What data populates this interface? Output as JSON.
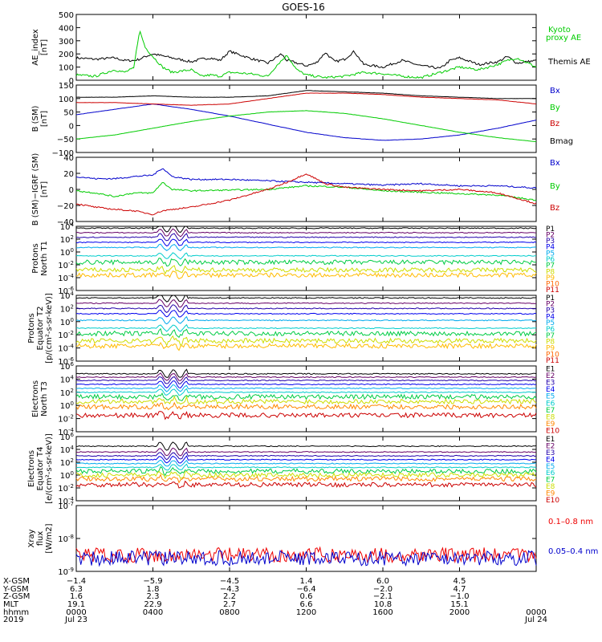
{
  "title": "GOES-16",
  "chart_data": [
    {
      "type": "line",
      "ylabel": "AE_index [nT]",
      "ylim": [
        0,
        500
      ],
      "yticks": [
        "500",
        "400",
        "300",
        "200",
        "100",
        "0"
      ],
      "log": false,
      "legend": [
        {
          "label": "Kyoto",
          "color": "#00cc00"
        },
        {
          "label": "proxy AE",
          "color": "#00cc00"
        },
        {
          "label": "Themis AE",
          "color": "#000000"
        }
      ],
      "series": [
        {
          "name": "Themis AE",
          "color": "#000000",
          "x": [
            0,
            1,
            2,
            2.5,
            3,
            3.3,
            3.6,
            4,
            5,
            6,
            6.5,
            7,
            7.5,
            8,
            9,
            10,
            10.7,
            11,
            11.3,
            12,
            12.5,
            13,
            13.5,
            14,
            14.5,
            15,
            16,
            17,
            18,
            19,
            19.5,
            20,
            21,
            22,
            22.5,
            23,
            24
          ],
          "values": [
            170,
            160,
            170,
            150,
            150,
            160,
            180,
            200,
            170,
            140,
            160,
            170,
            150,
            220,
            170,
            130,
            200,
            150,
            140,
            110,
            130,
            210,
            140,
            160,
            220,
            120,
            100,
            150,
            110,
            90,
            150,
            170,
            120,
            140,
            180,
            130,
            150
          ]
        },
        {
          "name": "Kyoto proxy AE",
          "color": "#00cc00",
          "x": [
            0,
            1,
            2,
            2.5,
            3,
            3.3,
            3.6,
            4,
            4.5,
            5,
            6,
            6.5,
            7,
            7.5,
            8,
            9,
            10,
            10.5,
            11,
            11.5,
            12,
            13,
            14,
            15,
            16,
            17,
            18,
            19,
            20,
            21,
            22,
            22.5,
            23,
            24
          ],
          "values": [
            40,
            30,
            80,
            60,
            90,
            380,
            250,
            180,
            100,
            60,
            80,
            30,
            40,
            30,
            60,
            50,
            30,
            120,
            190,
            80,
            40,
            20,
            30,
            60,
            50,
            30,
            20,
            60,
            100,
            80,
            120,
            150,
            170,
            100
          ]
        }
      ]
    },
    {
      "type": "line",
      "ylabel": "B (SM) [nT]",
      "ylim": [
        -100,
        150
      ],
      "yticks": [
        "150",
        "100",
        "50",
        "0",
        "−50",
        "−100"
      ],
      "log": false,
      "legend": [
        {
          "label": "Bx",
          "color": "#0000cc"
        },
        {
          "label": "By",
          "color": "#00cc00"
        },
        {
          "label": "Bz",
          "color": "#cc0000"
        },
        {
          "label": "Bmag",
          "color": "#000000"
        }
      ],
      "series": [
        {
          "name": "Bx",
          "color": "#0000cc",
          "x": [
            0,
            2,
            4,
            6,
            8,
            10,
            12,
            14,
            16,
            18,
            20,
            22,
            24
          ],
          "values": [
            40,
            60,
            80,
            60,
            35,
            5,
            -25,
            -45,
            -55,
            -50,
            -35,
            -10,
            20
          ]
        },
        {
          "name": "By",
          "color": "#00cc00",
          "x": [
            0,
            2,
            4,
            6,
            8,
            10,
            12,
            14,
            16,
            18,
            20,
            22,
            24
          ],
          "values": [
            -50,
            -35,
            -10,
            15,
            35,
            50,
            55,
            45,
            25,
            0,
            -25,
            -45,
            -60
          ]
        },
        {
          "name": "Bz",
          "color": "#cc0000",
          "x": [
            0,
            2,
            4,
            6,
            8,
            10,
            12,
            14,
            16,
            18,
            20,
            22,
            24
          ],
          "values": [
            85,
            85,
            80,
            75,
            80,
            100,
            120,
            120,
            115,
            105,
            100,
            95,
            80
          ]
        },
        {
          "name": "Bmag",
          "color": "#000000",
          "x": [
            0,
            2,
            4,
            6,
            8,
            10,
            12,
            14,
            16,
            18,
            20,
            22,
            24
          ],
          "values": [
            105,
            105,
            110,
            105,
            105,
            110,
            130,
            125,
            120,
            110,
            105,
            100,
            100
          ]
        }
      ]
    },
    {
      "type": "line",
      "ylabel": "B (SM)−IGRF (SM) [nT]",
      "ylim": [
        -45,
        45
      ],
      "yticks": [
        "40",
        "20",
        "0",
        "−20",
        "−40"
      ],
      "log": false,
      "legend": [
        {
          "label": "Bx",
          "color": "#0000cc"
        },
        {
          "label": "By",
          "color": "#00cc00"
        },
        {
          "label": "Bz",
          "color": "#cc0000"
        }
      ],
      "series": [
        {
          "name": "Bx",
          "color": "#0000cc",
          "x": [
            0,
            1,
            2,
            3,
            4,
            4.5,
            5,
            6,
            8,
            10,
            12,
            14,
            16,
            18,
            20,
            22,
            24
          ],
          "values": [
            18,
            15,
            15,
            18,
            20,
            30,
            18,
            14,
            14,
            12,
            10,
            8,
            6,
            8,
            5,
            5,
            2
          ]
        },
        {
          "name": "By",
          "color": "#00cc00",
          "x": [
            0,
            1,
            2,
            3,
            4,
            4.5,
            5,
            6,
            8,
            10,
            12,
            14,
            16,
            18,
            20,
            22,
            24
          ],
          "values": [
            -2,
            -5,
            -10,
            -5,
            -5,
            10,
            0,
            -2,
            -1,
            0,
            5,
            3,
            -2,
            -4,
            -6,
            -8,
            -15
          ]
        },
        {
          "name": "Bz",
          "color": "#cc0000",
          "x": [
            0,
            1,
            2,
            3,
            4,
            4.5,
            5,
            6,
            8,
            10,
            11,
            12,
            13,
            14,
            16,
            18,
            20,
            22,
            24
          ],
          "values": [
            -20,
            -25,
            -28,
            -30,
            -35,
            -30,
            -28,
            -25,
            -15,
            0,
            10,
            22,
            8,
            3,
            0,
            -2,
            0,
            -5,
            -20
          ]
        }
      ]
    },
    {
      "type": "line",
      "ylabel": "Protons North T1",
      "ylim": [
        -6,
        4
      ],
      "yticks": [
        "10^4",
        "10^2",
        "10^0",
        "10^-2",
        "10^-4",
        "10^-6"
      ],
      "log": true,
      "legend": [
        "P1",
        "P2",
        "P3",
        "P4",
        "P5",
        "P6",
        "P7",
        "P8",
        "P9",
        "P10",
        "P11"
      ],
      "series": [
        {
          "name": "P1",
          "color": "#000000",
          "values": [
            3.7
          ]
        },
        {
          "name": "P2",
          "color": "#660066",
          "values": [
            3.0
          ]
        },
        {
          "name": "P3",
          "color": "#2200aa",
          "values": [
            2.3
          ]
        },
        {
          "name": "P4",
          "color": "#0000ee",
          "values": [
            1.5
          ]
        },
        {
          "name": "P5",
          "color": "#00aaee",
          "values": [
            0.7
          ]
        },
        {
          "name": "P6",
          "color": "#00cccc",
          "values": [
            -0.6
          ]
        },
        {
          "name": "P7",
          "color": "#00cc44",
          "values": [
            -1.6
          ]
        },
        {
          "name": "P8",
          "color": "#ccdd00",
          "values": [
            -2.8
          ]
        },
        {
          "name": "P9",
          "color": "#ffbb00",
          "values": [
            -3.6
          ]
        }
      ]
    },
    {
      "type": "line",
      "ylabel": "Protons Equator T2 [p/(cm²-s-sr-keV)]",
      "ylim": [
        -6,
        4
      ],
      "yticks": [
        "10^4",
        "10^2",
        "10^0",
        "10^-2",
        "10^-4",
        "10^-6"
      ],
      "log": true,
      "legend": [
        "P1",
        "P2",
        "P3",
        "P4",
        "P5",
        "P6",
        "P7",
        "P8",
        "P9",
        "P10",
        "P11"
      ],
      "series": [
        {
          "name": "P1",
          "color": "#000000",
          "values": [
            3.6
          ]
        },
        {
          "name": "P2",
          "color": "#660066",
          "values": [
            2.8
          ]
        },
        {
          "name": "P3",
          "color": "#2200aa",
          "values": [
            2.0
          ]
        },
        {
          "name": "P4",
          "color": "#0000ee",
          "values": [
            1.2
          ]
        },
        {
          "name": "P5",
          "color": "#00aaee",
          "values": [
            0.2
          ]
        },
        {
          "name": "P6",
          "color": "#00cccc",
          "values": [
            -1.0
          ]
        },
        {
          "name": "P7",
          "color": "#00cc44",
          "values": [
            -1.8
          ]
        },
        {
          "name": "P8",
          "color": "#ccdd00",
          "values": [
            -2.9
          ]
        },
        {
          "name": "P9",
          "color": "#ffbb00",
          "values": [
            -3.7
          ]
        }
      ]
    },
    {
      "type": "line",
      "ylabel": "Electrons North T3",
      "ylim": [
        -4,
        6
      ],
      "yticks": [
        "10^6",
        "10^4",
        "10^2",
        "10^0",
        "10^-2",
        "10^-4"
      ],
      "log": true,
      "legend": [
        "E1",
        "E2",
        "E3",
        "E4",
        "E5",
        "E6",
        "E7",
        "E8",
        "E9",
        "E10"
      ],
      "series": [
        {
          "name": "E1",
          "color": "#000000",
          "values": [
            4.8
          ]
        },
        {
          "name": "E2",
          "color": "#660066",
          "values": [
            4.3
          ]
        },
        {
          "name": "E3",
          "color": "#2200aa",
          "values": [
            3.8
          ]
        },
        {
          "name": "E4",
          "color": "#0000ee",
          "values": [
            3.2
          ]
        },
        {
          "name": "E5",
          "color": "#00aaee",
          "values": [
            2.6
          ]
        },
        {
          "name": "E6",
          "color": "#00cccc",
          "values": [
            2.0
          ]
        },
        {
          "name": "E7",
          "color": "#00cc44",
          "values": [
            1.3
          ]
        },
        {
          "name": "E8",
          "color": "#ccdd00",
          "values": [
            0.6
          ]
        },
        {
          "name": "E9",
          "color": "#ff8800",
          "values": [
            -0.2
          ]
        },
        {
          "name": "E10",
          "color": "#cc0000",
          "values": [
            -1.5
          ]
        }
      ]
    },
    {
      "type": "line",
      "ylabel": "Electrons Equator T4 [e/(cm²-s-sr-keV)]",
      "ylim": [
        -4,
        6
      ],
      "yticks": [
        "10^6",
        "10^4",
        "10^2",
        "10^0",
        "10^-2",
        "10^-4"
      ],
      "log": true,
      "legend": [
        "E1",
        "E2",
        "E3",
        "E4",
        "E5",
        "E6",
        "E7",
        "E8",
        "E9",
        "E10"
      ],
      "series": [
        {
          "name": "E1",
          "color": "#000000",
          "values": [
            4.5
          ]
        },
        {
          "name": "E2",
          "color": "#660066",
          "values": [
            3.6
          ]
        },
        {
          "name": "E3",
          "color": "#2200aa",
          "values": [
            3.0
          ]
        },
        {
          "name": "E4",
          "color": "#0000ee",
          "values": [
            2.4
          ]
        },
        {
          "name": "E5",
          "color": "#00aaee",
          "values": [
            1.8
          ]
        },
        {
          "name": "E6",
          "color": "#00cccc",
          "values": [
            1.2
          ]
        },
        {
          "name": "E7",
          "color": "#00cc44",
          "values": [
            0.6
          ]
        },
        {
          "name": "E8",
          "color": "#ccdd00",
          "values": [
            0.0
          ]
        },
        {
          "name": "E9",
          "color": "#ff8800",
          "values": [
            -0.6
          ]
        },
        {
          "name": "E10",
          "color": "#cc0000",
          "values": [
            -1.5
          ]
        }
      ]
    },
    {
      "type": "line",
      "ylabel": "Xray flux [W/m2]",
      "ylim": [
        -9,
        -7
      ],
      "yticks": [
        "10^-7",
        "10^-8",
        "10^-9"
      ],
      "log": true,
      "legend": [
        {
          "label": "0.1–0.8 nm",
          "color": "#ee0000"
        },
        {
          "label": "0.05–0.4 nm",
          "color": "#0000cc"
        }
      ],
      "series": [
        {
          "name": "0.1–0.8 nm",
          "color": "#ee0000",
          "values": [
            -8.5
          ]
        },
        {
          "name": "0.05–0.4 nm",
          "color": "#0000cc",
          "values": [
            -8.6
          ]
        }
      ]
    }
  ],
  "footer": {
    "labels": [
      "X-GSM",
      "Y-GSM",
      "Z-GSM",
      "MLT",
      "hhmm",
      "2019"
    ],
    "columns": [
      {
        "x_gsm": "−1.4",
        "y_gsm": "6.3",
        "z_gsm": "1.6",
        "mlt": "19.1",
        "hhmm": "0000",
        "date": "Jul 23"
      },
      {
        "x_gsm": "−5.9",
        "y_gsm": "1.8",
        "z_gsm": "2.3",
        "mlt": "22.9",
        "hhmm": "0400",
        "date": ""
      },
      {
        "x_gsm": "−4.5",
        "y_gsm": "−4.3",
        "z_gsm": "2.2",
        "mlt": "2.7",
        "hhmm": "0800",
        "date": ""
      },
      {
        "x_gsm": "1.4",
        "y_gsm": "−6.4",
        "z_gsm": "0.6",
        "mlt": "6.6",
        "hhmm": "1200",
        "date": ""
      },
      {
        "x_gsm": "6.0",
        "y_gsm": "−2.0",
        "z_gsm": "−2.1",
        "mlt": "10.8",
        "hhmm": "1600",
        "date": ""
      },
      {
        "x_gsm": "4.5",
        "y_gsm": "4.7",
        "z_gsm": "−1.0",
        "mlt": "15.1",
        "hhmm": "2000",
        "date": ""
      },
      {
        "x_gsm": "",
        "y_gsm": "",
        "z_gsm": "",
        "mlt": "",
        "hhmm": "0000",
        "date": "Jul 24"
      }
    ]
  }
}
